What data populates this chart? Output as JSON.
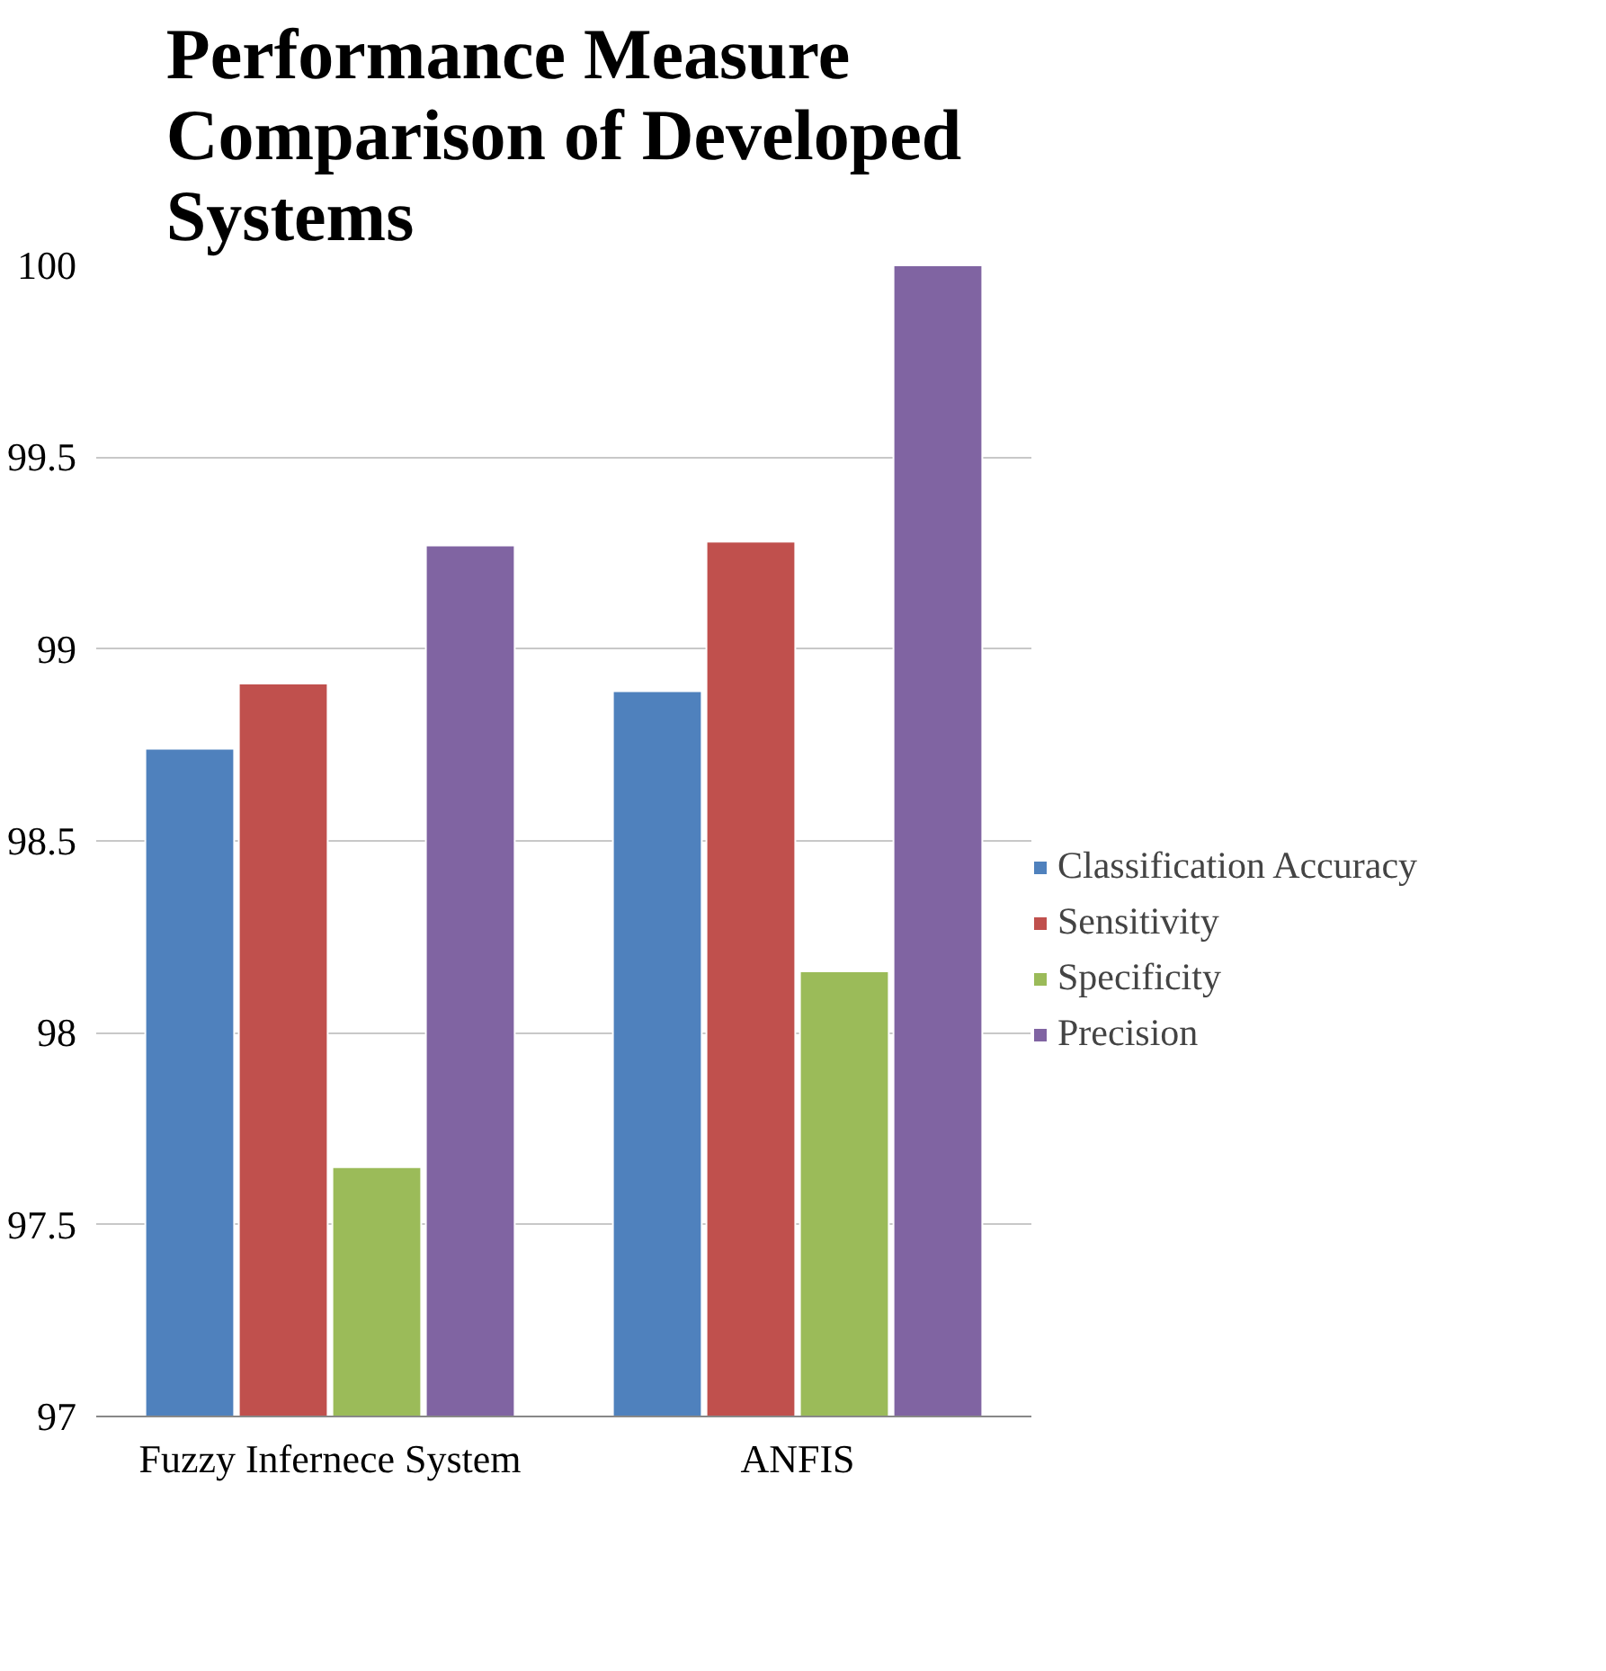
{
  "chart_data": {
    "type": "bar",
    "title": "Performance Measure Comparison of Developed Systems",
    "categories": [
      "Fuzzy Infernece System",
      "ANFIS"
    ],
    "series": [
      {
        "name": "Classification Accuracy",
        "color": "#4f81bd",
        "values": [
          98.74,
          98.89
        ]
      },
      {
        "name": "Sensitivity",
        "color": "#c0504d",
        "values": [
          98.91,
          99.28
        ]
      },
      {
        "name": "Specificity",
        "color": "#9bbb59",
        "values": [
          97.65,
          98.16
        ]
      },
      {
        "name": "Precision",
        "color": "#8064a2",
        "values": [
          99.27,
          100
        ]
      }
    ],
    "ylim": [
      97,
      100
    ],
    "yticks": [
      97,
      97.5,
      98,
      98.5,
      99,
      99.5,
      100
    ],
    "grid": "y",
    "legend": "right"
  }
}
